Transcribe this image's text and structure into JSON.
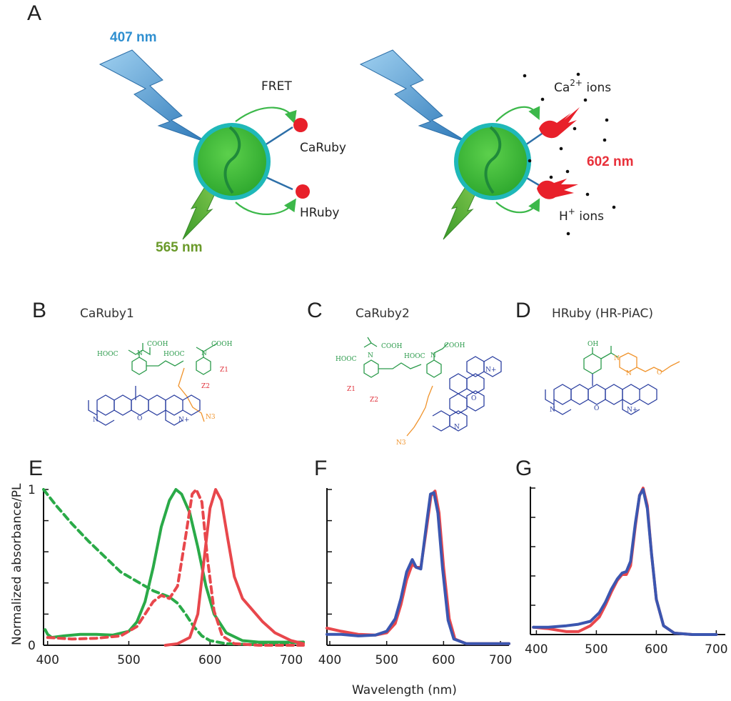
{
  "panel_a": {
    "letter": "A",
    "excitation": "407 nm",
    "emission_green": "565 nm",
    "fret": "FRET",
    "caruby": "CaRuby",
    "hruby": "HRuby",
    "ca_ions_prefix": "Ca",
    "ca_ions_sup": "2+",
    "ca_ions_suffix": " ions",
    "h_ions_prefix": "H",
    "h_ions_sup": "+",
    "h_ions_suffix": " ions",
    "emission_red": "602 nm",
    "colors": {
      "blue_text": "#2f8fd0",
      "green_text": "#6a9a2a",
      "red_text": "#e8303a",
      "sphere": "#3cc03c",
      "ring": "#19b5b5"
    }
  },
  "structures": [
    {
      "letter": "B",
      "title": "CaRuby1"
    },
    {
      "letter": "C",
      "title": "CaRuby2"
    },
    {
      "letter": "D",
      "title": "HRuby (HR-PiAC)"
    }
  ],
  "chem_labels": {
    "cooh": "COOH",
    "hooc": "HOOC",
    "n": "N",
    "o": "O",
    "n_plus": "N+",
    "z1": "Z1",
    "z2": "Z2",
    "n3": "N3",
    "oh": "OH"
  },
  "shared_axes": {
    "ylabel": "Normalized absorbance/PL",
    "xlabel": "Wavelength (nm)"
  },
  "chart_data": [
    {
      "panel": "E",
      "type": "line",
      "x_ticks": [
        400,
        500,
        600,
        700
      ],
      "y_tick_labels": [
        "0",
        "1"
      ],
      "xlim": [
        395,
        715
      ],
      "ylim": [
        0,
        1
      ],
      "series": [
        {
          "color": "#2aaa48",
          "dash": true,
          "x": [
            395,
            410,
            430,
            450,
            470,
            490,
            510,
            520,
            530,
            540,
            550,
            560,
            570,
            580,
            590,
            600,
            620,
            650,
            680,
            715
          ],
          "y": [
            1.0,
            0.9,
            0.78,
            0.67,
            0.57,
            0.47,
            0.41,
            0.38,
            0.35,
            0.33,
            0.31,
            0.27,
            0.2,
            0.12,
            0.06,
            0.03,
            0.01,
            0.005,
            0.01,
            0.02
          ]
        },
        {
          "color": "#2aaa48",
          "dash": false,
          "x": [
            397,
            400,
            405,
            420,
            440,
            460,
            480,
            500,
            510,
            520,
            530,
            540,
            550,
            558,
            565,
            575,
            585,
            595,
            605,
            620,
            640,
            660,
            700,
            715
          ],
          "y": [
            0.1,
            0.07,
            0.05,
            0.06,
            0.07,
            0.07,
            0.065,
            0.09,
            0.15,
            0.28,
            0.5,
            0.76,
            0.93,
            1.0,
            0.97,
            0.85,
            0.63,
            0.38,
            0.2,
            0.08,
            0.03,
            0.02,
            0.02,
            0.02
          ]
        },
        {
          "color": "#e8474c",
          "dash": true,
          "x": [
            400,
            430,
            460,
            490,
            510,
            520,
            530,
            540,
            550,
            560,
            570,
            578,
            583,
            590,
            597,
            605,
            615,
            630,
            660,
            715
          ],
          "y": [
            0.05,
            0.04,
            0.045,
            0.06,
            0.12,
            0.2,
            0.28,
            0.32,
            0.3,
            0.38,
            0.7,
            0.97,
            1.0,
            0.92,
            0.55,
            0.22,
            0.06,
            0.01,
            0.0,
            0.0
          ]
        },
        {
          "color": "#e8474c",
          "dash": false,
          "x": [
            545,
            560,
            575,
            585,
            592,
            600,
            607,
            614,
            622,
            630,
            640,
            650,
            665,
            680,
            700,
            715
          ],
          "y": [
            0.0,
            0.01,
            0.05,
            0.2,
            0.52,
            0.88,
            1.0,
            0.93,
            0.68,
            0.44,
            0.3,
            0.24,
            0.15,
            0.08,
            0.03,
            0.01
          ]
        }
      ]
    },
    {
      "panel": "F",
      "type": "line",
      "x_ticks": [
        400,
        500,
        600,
        700
      ],
      "xlim": [
        395,
        715
      ],
      "ylim": [
        0,
        1
      ],
      "series": [
        {
          "color": "#e8474c",
          "dash": false,
          "x": [
            395,
            420,
            450,
            480,
            500,
            515,
            525,
            535,
            545,
            552,
            560,
            570,
            578,
            585,
            592,
            600,
            610,
            620,
            640,
            680,
            715
          ],
          "y": [
            0.11,
            0.09,
            0.07,
            0.065,
            0.08,
            0.14,
            0.26,
            0.42,
            0.52,
            0.5,
            0.5,
            0.75,
            0.96,
            0.99,
            0.85,
            0.5,
            0.17,
            0.04,
            0.01,
            0.01,
            0.01
          ]
        },
        {
          "color": "#3b56b0",
          "dash": false,
          "x": [
            395,
            420,
            450,
            480,
            500,
            515,
            525,
            535,
            545,
            552,
            560,
            570,
            577,
            583,
            590,
            598,
            608,
            618,
            640,
            680,
            715
          ],
          "y": [
            0.07,
            0.07,
            0.06,
            0.065,
            0.09,
            0.17,
            0.3,
            0.47,
            0.55,
            0.5,
            0.49,
            0.78,
            0.97,
            0.98,
            0.85,
            0.5,
            0.16,
            0.04,
            0.01,
            0.01,
            0.01
          ]
        }
      ]
    },
    {
      "panel": "G",
      "type": "line",
      "x_ticks": [
        400,
        500,
        600,
        700
      ],
      "xlim": [
        390,
        715
      ],
      "ylim": [
        0,
        1
      ],
      "series": [
        {
          "color": "#e8474c",
          "dash": false,
          "x": [
            395,
            420,
            450,
            470,
            490,
            505,
            515,
            525,
            535,
            543,
            550,
            557,
            565,
            572,
            578,
            585,
            592,
            600,
            612,
            630,
            660,
            700
          ],
          "y": [
            0.05,
            0.04,
            0.02,
            0.02,
            0.06,
            0.12,
            0.2,
            0.29,
            0.37,
            0.41,
            0.41,
            0.47,
            0.74,
            0.95,
            1.0,
            0.88,
            0.55,
            0.24,
            0.06,
            0.01,
            0.0,
            0.0
          ]
        },
        {
          "color": "#3b56b0",
          "dash": false,
          "x": [
            395,
            420,
            450,
            470,
            490,
            505,
            515,
            525,
            535,
            543,
            550,
            557,
            565,
            572,
            578,
            585,
            592,
            600,
            612,
            630,
            660,
            700
          ],
          "y": [
            0.05,
            0.05,
            0.06,
            0.07,
            0.09,
            0.15,
            0.22,
            0.31,
            0.38,
            0.42,
            0.43,
            0.5,
            0.76,
            0.95,
            0.99,
            0.86,
            0.55,
            0.24,
            0.06,
            0.01,
            0.0,
            0.0
          ]
        }
      ]
    }
  ]
}
